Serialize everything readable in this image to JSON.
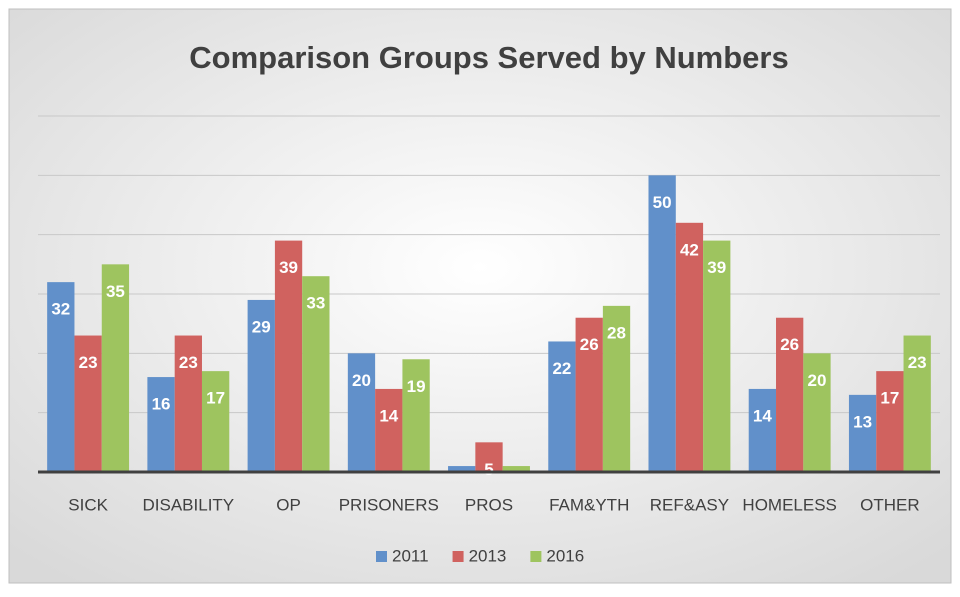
{
  "chart_data": {
    "type": "bar",
    "title": "Comparison Groups Served by Numbers",
    "categories": [
      "SICK",
      "DISABILITY",
      "OP",
      "PRISONERS",
      "PROS",
      "FAM&YTH",
      "REF&ASY",
      "HOMELESS",
      "OTHER"
    ],
    "series": [
      {
        "name": "2011",
        "color": "#6190ca",
        "values": [
          32,
          16,
          29,
          20,
          1,
          22,
          50,
          14,
          13
        ],
        "value_labels": [
          "32",
          "16",
          "29",
          "20",
          null,
          "22",
          "50",
          "14",
          "13"
        ]
      },
      {
        "name": "2013",
        "color": "#d0625f",
        "values": [
          23,
          23,
          39,
          14,
          5,
          26,
          42,
          26,
          17
        ],
        "value_labels": [
          "23",
          "23",
          "39",
          "14",
          "5",
          "26",
          "42",
          "26",
          "17"
        ]
      },
      {
        "name": "2016",
        "color": "#9ec45f",
        "values": [
          35,
          17,
          33,
          19,
          1,
          28,
          39,
          20,
          23
        ],
        "value_labels": [
          "35",
          "17",
          "33",
          "19",
          null,
          "28",
          "39",
          "20",
          "23"
        ]
      }
    ],
    "ylim": [
      0,
      60
    ],
    "yticks": [
      0,
      10,
      20,
      30,
      40,
      50,
      60
    ],
    "grid": true,
    "legend": "bottom"
  }
}
